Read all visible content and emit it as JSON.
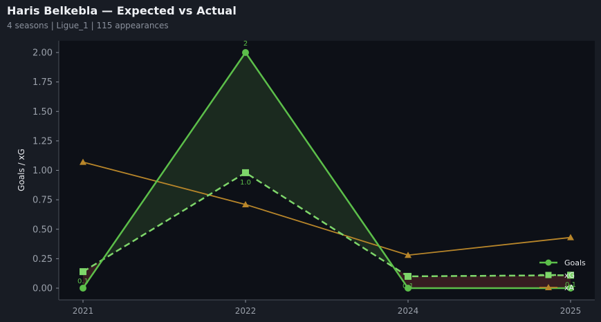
{
  "header": {
    "title": "Haris Belkebla — Expected vs Actual",
    "subtitle": "4 seasons | Ligue_1 | 115 appearances"
  },
  "colors": {
    "page_bg": "#181c24",
    "plot_bg": "#0d1017",
    "goals": "#5cbf4a",
    "xg": "#7ed66a",
    "xa": "#b8862a",
    "over_fill": "#1c2c20",
    "under_fill": "#3a1f22",
    "axis": "#4a4f5a",
    "tick_text": "#9aa0aa"
  },
  "chart_data": {
    "type": "line",
    "title": "Haris Belkebla — Expected vs Actual",
    "subtitle": "4 seasons | Ligue_1 | 115 appearances",
    "xlabel": "",
    "ylabel": "Goals / xG",
    "categories": [
      "2021",
      "2022",
      "2024",
      "2025"
    ],
    "ylim": [
      -0.08,
      2.1
    ],
    "yticks": [
      "0.00",
      "0.25",
      "0.50",
      "0.75",
      "1.00",
      "1.25",
      "1.50",
      "1.75",
      "2.00"
    ],
    "grid": false,
    "legend_position": "lower right",
    "series": [
      {
        "name": "Goals",
        "marker": "circle",
        "style": "solid",
        "values": [
          0,
          2,
          0,
          0
        ],
        "labels": [
          "",
          "2",
          "",
          ""
        ]
      },
      {
        "name": "xG",
        "marker": "square",
        "style": "dashed",
        "values": [
          0.14,
          0.98,
          0.1,
          0.11
        ],
        "labels": [
          "0.1",
          "1.0",
          "0.1",
          "0.1"
        ]
      },
      {
        "name": "xA",
        "marker": "triangle",
        "style": "solid",
        "values": [
          1.07,
          0.71,
          0.28,
          0.43
        ]
      }
    ],
    "fills": [
      {
        "between": [
          "Goals",
          "xG"
        ],
        "where": "Goals > xG",
        "color": "green"
      },
      {
        "between": [
          "Goals",
          "xG"
        ],
        "where": "Goals < xG",
        "color": "red"
      }
    ]
  },
  "legend": {
    "items": [
      {
        "label": "Goals"
      },
      {
        "label": "xG"
      },
      {
        "label": "xA"
      }
    ]
  }
}
